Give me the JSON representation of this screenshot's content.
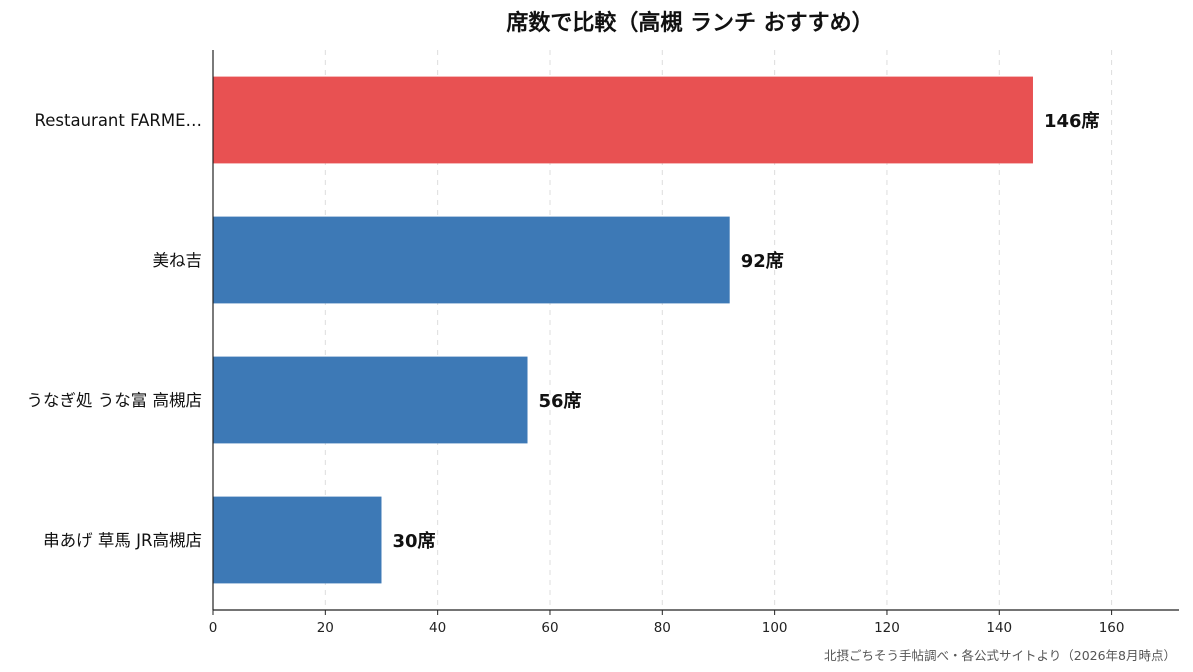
{
  "chart_data": {
    "type": "bar",
    "orientation": "horizontal",
    "title": "席数で比較（高槻 ランチ おすすめ）",
    "categories": [
      "Restaurant FARME…",
      "美ね吉",
      "うなぎ処 うな富 高槻店",
      "串あげ 草馬 JR高槻店"
    ],
    "values": [
      146,
      92,
      56,
      30
    ],
    "value_labels": [
      "146席",
      "92席",
      "56席",
      "30席"
    ],
    "bar_colors": [
      "#e85152",
      "#3d79b6",
      "#3d79b6",
      "#3d79b6"
    ],
    "xlim": [
      0,
      172
    ],
    "x_ticks": [
      0,
      20,
      40,
      60,
      80,
      100,
      120,
      140,
      160
    ],
    "xlabel": "",
    "ylabel": "",
    "grid": "vertical dashed",
    "legend": "none"
  },
  "source_note": "北摂ごちそう手帖調べ・各公式サイトより（2026年8月時点）",
  "colors": {
    "highlight": "#e85152",
    "default": "#3d79b6",
    "grid": "#dddddd",
    "axis": "#222222"
  }
}
